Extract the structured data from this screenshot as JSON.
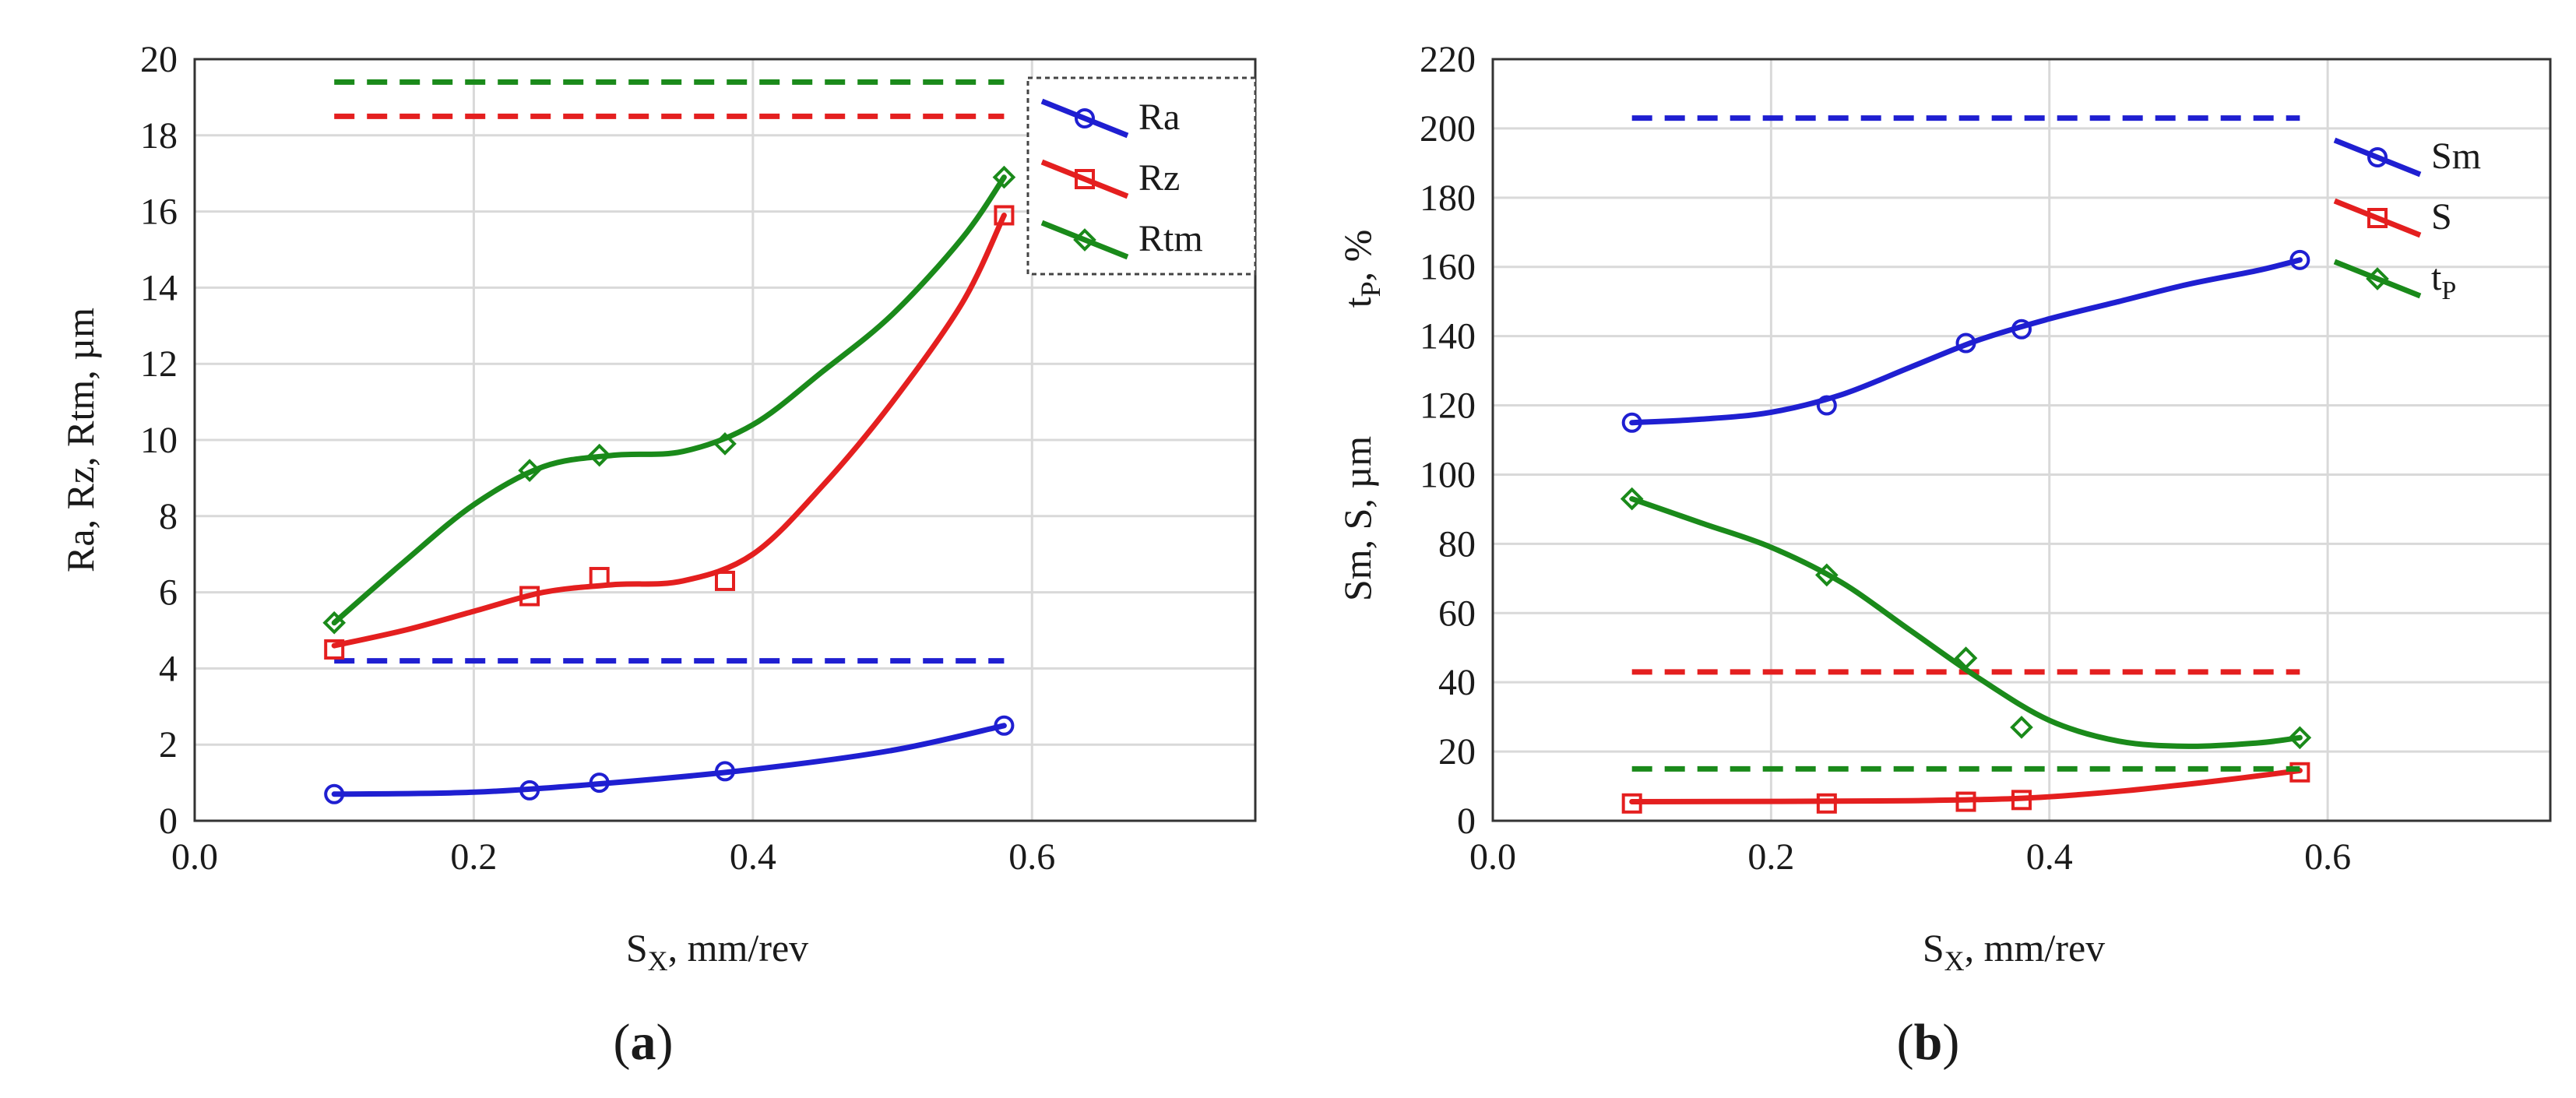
{
  "chart_data": [
    {
      "type": "line",
      "panel_label": "(a)",
      "caption_letter": "a",
      "xlabel_main": "S",
      "xlabel_sub": "X",
      "xlabel_rest": ", mm/rev",
      "ylabel": "Ra, Rz, Rtm, µm",
      "xlim": [
        0.0,
        0.76
      ],
      "ylim": [
        0,
        20
      ],
      "x_ticks": [
        "0.0",
        "0.2",
        "0.4",
        "0.6"
      ],
      "x_tick_values": [
        0.0,
        0.2,
        0.4,
        0.6
      ],
      "y_ticks": [
        "0",
        "2",
        "4",
        "6",
        "8",
        "10",
        "12",
        "14",
        "16",
        "18",
        "20"
      ],
      "y_tick_values": [
        0,
        2,
        4,
        6,
        8,
        10,
        12,
        14,
        16,
        18,
        20
      ],
      "grid": true,
      "legend_position": "top-right",
      "series": [
        {
          "name": "Ra",
          "color": "#1f1fd1",
          "marker": "circle",
          "x": [
            0.1,
            0.24,
            0.29,
            0.38,
            0.58
          ],
          "y": [
            0.7,
            0.8,
            1.0,
            1.3,
            2.5
          ],
          "curve": [
            [
              0.1,
              0.7
            ],
            [
              0.2,
              0.75
            ],
            [
              0.3,
              1.0
            ],
            [
              0.4,
              1.35
            ],
            [
              0.5,
              1.85
            ],
            [
              0.58,
              2.5
            ]
          ],
          "limit": 4.2
        },
        {
          "name": "Rz",
          "color": "#e41f1f",
          "marker": "square",
          "x": [
            0.1,
            0.24,
            0.29,
            0.38,
            0.58
          ],
          "y": [
            4.5,
            5.9,
            6.4,
            6.3,
            15.9
          ],
          "curve": [
            [
              0.1,
              4.6
            ],
            [
              0.15,
              5.0
            ],
            [
              0.2,
              5.5
            ],
            [
              0.25,
              6.0
            ],
            [
              0.3,
              6.2
            ],
            [
              0.35,
              6.3
            ],
            [
              0.4,
              7.0
            ],
            [
              0.45,
              8.8
            ],
            [
              0.5,
              11.0
            ],
            [
              0.55,
              13.6
            ],
            [
              0.58,
              15.9
            ]
          ],
          "limit": 18.5
        },
        {
          "name": "Rtm",
          "color": "#1a8a1a",
          "marker": "diamond",
          "x": [
            0.1,
            0.24,
            0.29,
            0.38,
            0.58
          ],
          "y": [
            5.2,
            9.2,
            9.6,
            9.9,
            16.9
          ],
          "curve": [
            [
              0.1,
              5.2
            ],
            [
              0.15,
              6.8
            ],
            [
              0.2,
              8.3
            ],
            [
              0.25,
              9.3
            ],
            [
              0.3,
              9.6
            ],
            [
              0.35,
              9.7
            ],
            [
              0.4,
              10.4
            ],
            [
              0.45,
              11.8
            ],
            [
              0.5,
              13.3
            ],
            [
              0.55,
              15.3
            ],
            [
              0.58,
              16.9
            ]
          ],
          "limit": 19.4
        }
      ]
    },
    {
      "type": "line",
      "panel_label": "(b)",
      "caption_letter": "b",
      "xlabel_main": "S",
      "xlabel_sub": "X",
      "xlabel_rest": ", mm/rev",
      "ylabel_lower": "Sm, S, µm",
      "ylabel_upper_main": "t",
      "ylabel_upper_sub": "P",
      "ylabel_upper_rest": ", %",
      "xlim": [
        0.0,
        0.76
      ],
      "ylim": [
        0,
        220
      ],
      "x_ticks": [
        "0.0",
        "0.2",
        "0.4",
        "0.6"
      ],
      "x_tick_values": [
        0.0,
        0.2,
        0.4,
        0.6
      ],
      "y_ticks": [
        "0",
        "20",
        "40",
        "60",
        "80",
        "100",
        "120",
        "140",
        "160",
        "180",
        "200",
        "220"
      ],
      "y_tick_values": [
        0,
        20,
        40,
        60,
        80,
        100,
        120,
        140,
        160,
        180,
        200,
        220
      ],
      "grid": true,
      "legend_position": "top-right",
      "series": [
        {
          "name": "Sm",
          "name_sub": "",
          "color": "#1f1fd1",
          "marker": "circle",
          "x": [
            0.1,
            0.24,
            0.34,
            0.38,
            0.58
          ],
          "y": [
            115,
            120,
            138,
            142,
            162
          ],
          "curve": [
            [
              0.1,
              115
            ],
            [
              0.15,
              116
            ],
            [
              0.2,
              118
            ],
            [
              0.25,
              123
            ],
            [
              0.3,
              131
            ],
            [
              0.35,
              139
            ],
            [
              0.4,
              145
            ],
            [
              0.45,
              150
            ],
            [
              0.5,
              155
            ],
            [
              0.55,
              159
            ],
            [
              0.58,
              162
            ]
          ],
          "limit": 203
        },
        {
          "name": "S",
          "name_sub": "",
          "color": "#e41f1f",
          "marker": "square",
          "x": [
            0.1,
            0.24,
            0.34,
            0.38,
            0.58
          ],
          "y": [
            5,
            5,
            5.5,
            6,
            14
          ],
          "curve": [
            [
              0.1,
              5.5
            ],
            [
              0.2,
              5.6
            ],
            [
              0.3,
              5.8
            ],
            [
              0.38,
              6.5
            ],
            [
              0.45,
              8.5
            ],
            [
              0.52,
              11.5
            ],
            [
              0.58,
              14.5
            ]
          ],
          "limit": 43
        },
        {
          "name": "t",
          "name_sub": "P",
          "color": "#1a8a1a",
          "marker": "diamond",
          "x": [
            0.1,
            0.24,
            0.34,
            0.38,
            0.58
          ],
          "y": [
            93,
            71,
            47,
            27,
            24
          ],
          "curve": [
            [
              0.1,
              93
            ],
            [
              0.15,
              86
            ],
            [
              0.2,
              79
            ],
            [
              0.25,
              69
            ],
            [
              0.3,
              55
            ],
            [
              0.35,
              41
            ],
            [
              0.4,
              29
            ],
            [
              0.45,
              23
            ],
            [
              0.5,
              21.5
            ],
            [
              0.55,
              22.5
            ],
            [
              0.58,
              24
            ]
          ],
          "limit": 15
        }
      ]
    }
  ]
}
